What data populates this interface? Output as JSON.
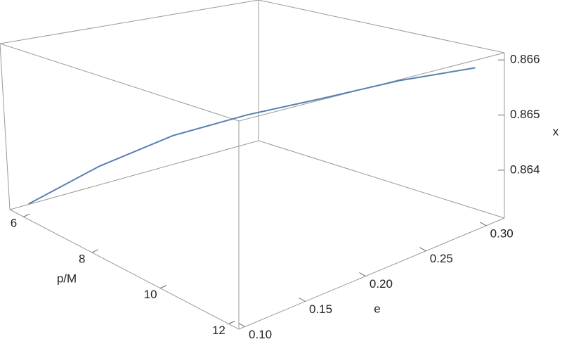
{
  "chart_data": {
    "type": "line3d",
    "xlabel": "p/M",
    "ylabel": "e",
    "zlabel": "x",
    "xlim": [
      5.6,
      12.3
    ],
    "ylim": [
      0.095,
      0.315
    ],
    "zlim": [
      0.86313,
      0.86613
    ],
    "xticks": [
      6,
      8,
      10,
      12
    ],
    "yticks": [
      {
        "value": 0.1,
        "label": "0.10"
      },
      {
        "value": 0.15,
        "label": "0.15"
      },
      {
        "value": 0.2,
        "label": "0.20"
      },
      {
        "value": 0.25,
        "label": "0.25"
      },
      {
        "value": 0.3,
        "label": "0.30"
      }
    ],
    "zticks": [
      0.864,
      0.865,
      0.866
    ],
    "series": [
      {
        "color": "#5b7fb5",
        "x": [
          6,
          7,
          8,
          9,
          10,
          11,
          12
        ],
        "y": [
          0.1,
          0.133,
          0.167,
          0.2,
          0.233,
          0.267,
          0.3
        ],
        "z": [
          0.86333,
          0.8641,
          0.8647,
          0.8651,
          0.8654,
          0.8657,
          0.8659
        ]
      }
    ]
  }
}
